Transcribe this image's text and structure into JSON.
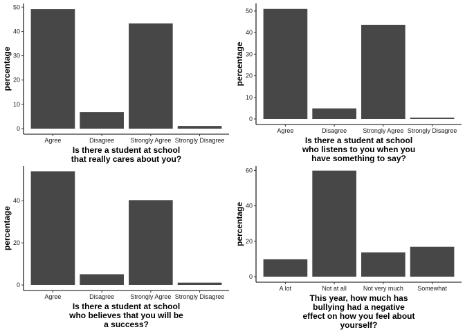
{
  "chart_data": [
    {
      "type": "bar",
      "title": "",
      "xlabel": "Is there a student at school\nthat really cares about you?",
      "ylabel": "percentage",
      "categories": [
        "Agree",
        "Disagree",
        "Strongly Agree",
        "Strongly Disagree"
      ],
      "values": [
        49.2,
        6.8,
        43.3,
        1.1
      ],
      "ylim": [
        0,
        51.5
      ],
      "yticks": [
        0,
        10,
        20,
        30,
        40,
        50
      ],
      "bar_color": "#474747",
      "grid": false,
      "legend": "none"
    },
    {
      "type": "bar",
      "title": "",
      "xlabel": "Is there a student at school\nwho listens to you when you\nhave something to say?",
      "ylabel": "percentage",
      "categories": [
        "Agree",
        "Disagree",
        "Strongly Agree",
        "Strongly Disagree"
      ],
      "values": [
        51.0,
        4.9,
        43.6,
        0.6
      ],
      "ylim": [
        0,
        53.5
      ],
      "yticks": [
        0,
        10,
        20,
        30,
        40,
        50
      ],
      "bar_color": "#474747",
      "grid": false,
      "legend": "none"
    },
    {
      "type": "bar",
      "title": "",
      "xlabel": "Is there a student at school\nwho believes that you will be\na success?",
      "ylabel": "percentage",
      "categories": [
        "Agree",
        "Disagree",
        "Strongly Agree",
        "Strongly Disagree"
      ],
      "values": [
        54.0,
        5.1,
        40.3,
        1.1
      ],
      "ylim": [
        0,
        56.5
      ],
      "yticks": [
        0,
        20,
        40
      ],
      "bar_color": "#474747",
      "grid": false,
      "legend": "none"
    },
    {
      "type": "bar",
      "title": "",
      "xlabel": "This year, how much has\nbullying had a negative\neffect on how you feel about\nyourself?",
      "ylabel": "percentage",
      "categories": [
        "A lot",
        "Not at all",
        "Not very much",
        "Somewhat"
      ],
      "values": [
        9.8,
        59.9,
        13.7,
        16.9
      ],
      "ylim": [
        0,
        62.5
      ],
      "yticks": [
        0,
        20,
        40,
        60
      ],
      "bar_color": "#474747",
      "grid": false,
      "legend": "none"
    }
  ]
}
